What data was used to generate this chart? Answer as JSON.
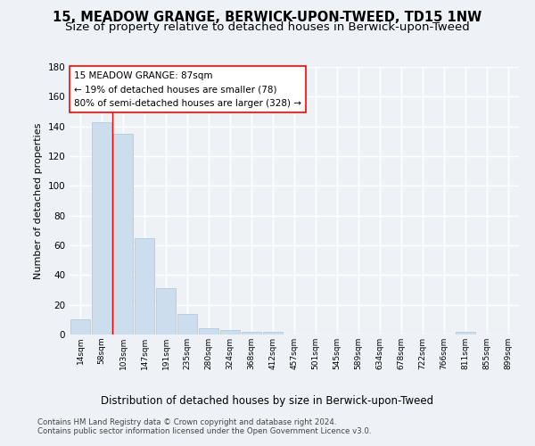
{
  "title": "15, MEADOW GRANGE, BERWICK-UPON-TWEED, TD15 1NW",
  "subtitle": "Size of property relative to detached houses in Berwick-upon-Tweed",
  "xlabel": "Distribution of detached houses by size in Berwick-upon-Tweed",
  "ylabel": "Number of detached properties",
  "bar_color": "#ccdded",
  "bar_edge_color": "#aac4d8",
  "categories": [
    "14sqm",
    "58sqm",
    "103sqm",
    "147sqm",
    "191sqm",
    "235sqm",
    "280sqm",
    "324sqm",
    "368sqm",
    "412sqm",
    "457sqm",
    "501sqm",
    "545sqm",
    "589sqm",
    "634sqm",
    "678sqm",
    "722sqm",
    "766sqm",
    "811sqm",
    "855sqm",
    "899sqm"
  ],
  "values": [
    10,
    143,
    135,
    65,
    31,
    14,
    4,
    3,
    2,
    2,
    0,
    0,
    0,
    0,
    0,
    0,
    0,
    0,
    2,
    0,
    0
  ],
  "ylim": [
    0,
    180
  ],
  "yticks": [
    0,
    20,
    40,
    60,
    80,
    100,
    120,
    140,
    160,
    180
  ],
  "red_line_x": 1.5,
  "annotation_text": "15 MEADOW GRANGE: 87sqm\n← 19% of detached houses are smaller (78)\n80% of semi-detached houses are larger (328) →",
  "footer_line1": "Contains HM Land Registry data © Crown copyright and database right 2024.",
  "footer_line2": "Contains public sector information licensed under the Open Government Licence v3.0.",
  "background_color": "#eef2f7",
  "grid_color": "#ffffff",
  "title_fontsize": 10.5,
  "subtitle_fontsize": 9.5
}
